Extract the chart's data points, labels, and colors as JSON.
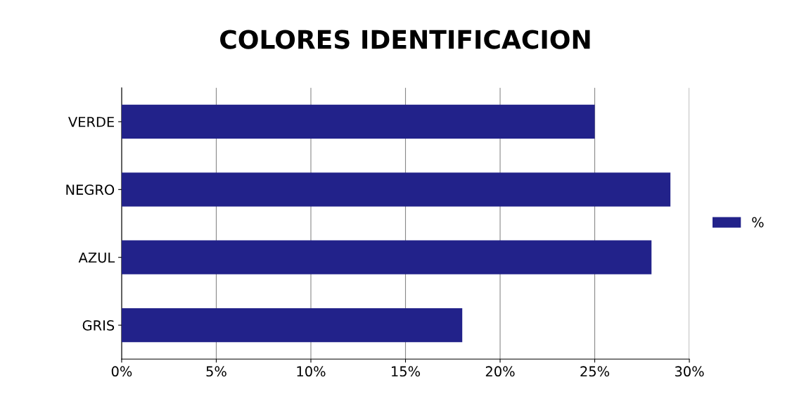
{
  "chart_data": {
    "type": "bar",
    "orientation": "horizontal",
    "title": "COLORES IDENTIFICACION",
    "categories": [
      "VERDE",
      "NEGRO",
      "AZUL",
      "GRIS"
    ],
    "series": [
      {
        "name": "%",
        "color": "#22228a",
        "values": [
          25,
          29,
          28,
          18
        ]
      }
    ],
    "xlim": [
      0,
      30
    ],
    "xticks": [
      {
        "value": 0,
        "label": "0%"
      },
      {
        "value": 5,
        "label": "5%"
      },
      {
        "value": 10,
        "label": "10%"
      },
      {
        "value": 15,
        "label": "15%"
      },
      {
        "value": 20,
        "label": "20%"
      },
      {
        "value": 25,
        "label": "25%"
      },
      {
        "value": 30,
        "label": "30%"
      }
    ],
    "grid": "x",
    "legend": "right"
  }
}
